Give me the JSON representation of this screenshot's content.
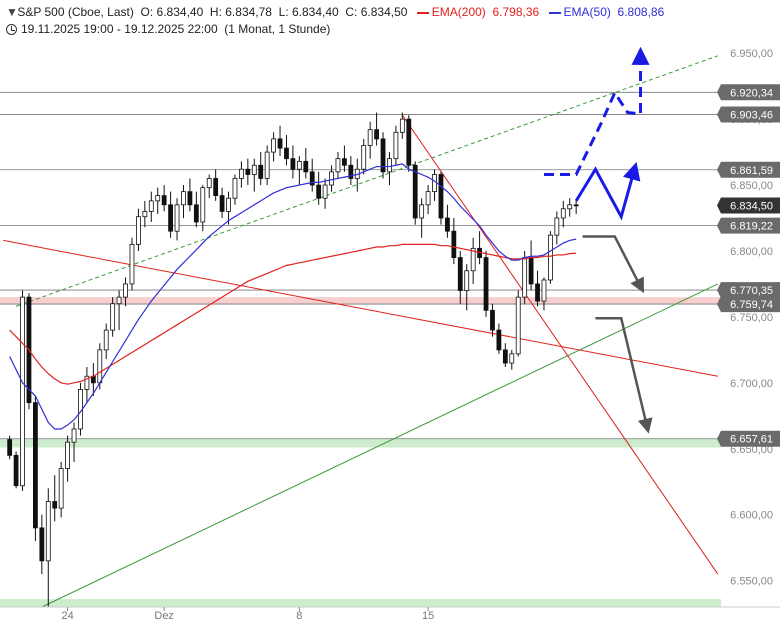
{
  "header": {
    "symbol_line": "S&P 500 (Cboe, Last)",
    "open": "O: 6.834,40",
    "high": "H: 6.834,78",
    "low": "L: 6.834,40",
    "close": "C: 6.834,50",
    "ema200_label": "EMA(200)",
    "ema200_value": "6.798,36",
    "ema50_label": "EMA(50)",
    "ema50_value": "6.808,86",
    "range": "19.11.2025 19:00 - 19.12.2025 22:00",
    "interval": "(1 Monat, 1 Stunde)"
  },
  "colors": {
    "ema200": "#e0211c",
    "ema50": "#2f2fd6",
    "support_zone": "#cdeccd",
    "resistance_zone": "#f7cfcf",
    "forecast_up": "#1a1ae6",
    "forecast_down": "#555555",
    "uptrend": "#3a9a3a",
    "downtrend": "#e0211c",
    "label_bg": "#6a6a6a",
    "current_label_bg": "#333333"
  },
  "chart_data": {
    "type": "candlestick",
    "ylim": [
      6530,
      6960
    ],
    "y_ticks": [
      {
        "value": 6950,
        "label": "6.950,00"
      },
      {
        "value": 6900,
        "label": "6.900,00"
      },
      {
        "value": 6850,
        "label": "6.850,00"
      },
      {
        "value": 6800,
        "label": "6.800,00"
      },
      {
        "value": 6750,
        "label": "6.750,00"
      },
      {
        "value": 6700,
        "label": "6.700,00"
      },
      {
        "value": 6650,
        "label": "6.650,00"
      },
      {
        "value": 6600,
        "label": "6.600,00"
      },
      {
        "value": 6550,
        "label": "6.550,00"
      }
    ],
    "x_ticks": [
      {
        "bar": 10,
        "label": "24"
      },
      {
        "bar": 25,
        "label": "Dez"
      },
      {
        "bar": 46,
        "label": "8"
      },
      {
        "bar": 66,
        "label": "15"
      }
    ],
    "level_labels": [
      {
        "value": 6920.34,
        "label": "6.920,34",
        "line": true
      },
      {
        "value": 6903.46,
        "label": "6.903,46",
        "line": true
      },
      {
        "value": 6861.59,
        "label": "6.861,59",
        "line": true
      },
      {
        "value": 6834.5,
        "label": "6.834,50",
        "line": false,
        "current": true
      },
      {
        "value": 6819.22,
        "label": "6.819,22",
        "line": true
      },
      {
        "value": 6770.35,
        "label": "6.770,35",
        "line": true
      },
      {
        "value": 6759.74,
        "label": "6.759,74",
        "line": true
      },
      {
        "value": 6657.61,
        "label": "6.657,61",
        "line": true
      }
    ],
    "zones": [
      {
        "from": 6759.74,
        "to": 6765,
        "kind": "resistance"
      },
      {
        "from": 6651,
        "to": 6657.61,
        "kind": "support"
      },
      {
        "from": 6530,
        "to": 6536,
        "kind": "support"
      }
    ],
    "trendlines": [
      {
        "kind": "uptrend",
        "style": "solid",
        "from": [
          6,
          6530
        ],
        "to": [
          111,
          6775
        ]
      },
      {
        "kind": "uptrend",
        "style": "dashed",
        "from": [
          2,
          6758
        ],
        "to": [
          111,
          6948
        ]
      },
      {
        "kind": "downtrend",
        "style": "solid",
        "from": [
          0,
          6808
        ],
        "to": [
          111,
          6705
        ]
      },
      {
        "kind": "downtrend",
        "style": "solid",
        "from": [
          62,
          6903
        ],
        "to": [
          111,
          6555
        ]
      }
    ],
    "forecasts": [
      {
        "kind": "up",
        "style": "dashed",
        "points": [
          [
            84,
            6858
          ],
          [
            89,
            6858
          ],
          [
            93,
            6898
          ],
          [
            95,
            6920
          ],
          [
            97,
            6905
          ],
          [
            99,
            6904
          ],
          [
            99,
            6948
          ]
        ]
      },
      {
        "kind": "up",
        "style": "solid",
        "points": [
          [
            89,
            6838
          ],
          [
            92,
            6862
          ],
          [
            96,
            6826
          ],
          [
            98,
            6861
          ]
        ]
      },
      {
        "kind": "down",
        "style": "solid",
        "points": [
          [
            90,
            6811
          ],
          [
            95,
            6811
          ],
          [
            99,
            6773
          ]
        ]
      },
      {
        "kind": "down",
        "style": "solid",
        "points": [
          [
            92,
            6749
          ],
          [
            96,
            6749
          ],
          [
            100,
            6667
          ]
        ]
      }
    ],
    "candles": [
      [
        6657,
        6660,
        6642,
        6645
      ],
      [
        6645,
        6648,
        6620,
        6622
      ],
      [
        6622,
        6770,
        6618,
        6765
      ],
      [
        6765,
        6768,
        6680,
        6685
      ],
      [
        6685,
        6690,
        6580,
        6590
      ],
      [
        6590,
        6600,
        6555,
        6565
      ],
      [
        6565,
        6620,
        6530,
        6610
      ],
      [
        6610,
        6630,
        6595,
        6605
      ],
      [
        6605,
        6640,
        6598,
        6635
      ],
      [
        6635,
        6660,
        6625,
        6655
      ],
      [
        6655,
        6670,
        6640,
        6665
      ],
      [
        6665,
        6700,
        6660,
        6695
      ],
      [
        6695,
        6712,
        6685,
        6705
      ],
      [
        6705,
        6715,
        6690,
        6700
      ],
      [
        6700,
        6730,
        6695,
        6725
      ],
      [
        6725,
        6745,
        6718,
        6740
      ],
      [
        6740,
        6765,
        6735,
        6760
      ],
      [
        6760,
        6770,
        6740,
        6765
      ],
      [
        6765,
        6780,
        6758,
        6775
      ],
      [
        6775,
        6810,
        6770,
        6805
      ],
      [
        6805,
        6832,
        6800,
        6826
      ],
      [
        6826,
        6838,
        6818,
        6830
      ],
      [
        6830,
        6845,
        6822,
        6838
      ],
      [
        6838,
        6848,
        6828,
        6842
      ],
      [
        6842,
        6850,
        6830,
        6835
      ],
      [
        6835,
        6845,
        6810,
        6815
      ],
      [
        6815,
        6840,
        6808,
        6835
      ],
      [
        6835,
        6850,
        6825,
        6845
      ],
      [
        6845,
        6855,
        6830,
        6835
      ],
      [
        6835,
        6845,
        6818,
        6822
      ],
      [
        6822,
        6850,
        6815,
        6848
      ],
      [
        6848,
        6858,
        6840,
        6855
      ],
      [
        6855,
        6862,
        6838,
        6842
      ],
      [
        6842,
        6848,
        6825,
        6830
      ],
      [
        6830,
        6845,
        6820,
        6840
      ],
      [
        6840,
        6858,
        6835,
        6855
      ],
      [
        6855,
        6868,
        6848,
        6862
      ],
      [
        6862,
        6870,
        6850,
        6858
      ],
      [
        6858,
        6870,
        6845,
        6865
      ],
      [
        6865,
        6875,
        6850,
        6855
      ],
      [
        6855,
        6880,
        6850,
        6875
      ],
      [
        6875,
        6890,
        6868,
        6885
      ],
      [
        6885,
        6895,
        6872,
        6878
      ],
      [
        6878,
        6888,
        6865,
        6870
      ],
      [
        6870,
        6880,
        6855,
        6862
      ],
      [
        6862,
        6872,
        6850,
        6868
      ],
      [
        6868,
        6878,
        6855,
        6860
      ],
      [
        6860,
        6870,
        6845,
        6850
      ],
      [
        6850,
        6860,
        6835,
        6840
      ],
      [
        6840,
        6855,
        6832,
        6850
      ],
      [
        6850,
        6865,
        6845,
        6860
      ],
      [
        6860,
        6875,
        6855,
        6870
      ],
      [
        6870,
        6880,
        6860,
        6865
      ],
      [
        6865,
        6872,
        6850,
        6855
      ],
      [
        6855,
        6870,
        6845,
        6862
      ],
      [
        6862,
        6885,
        6858,
        6880
      ],
      [
        6880,
        6898,
        6870,
        6892
      ],
      [
        6892,
        6905,
        6880,
        6885
      ],
      [
        6885,
        6890,
        6855,
        6860
      ],
      [
        6860,
        6875,
        6850,
        6870
      ],
      [
        6870,
        6895,
        6865,
        6890
      ],
      [
        6890,
        6905,
        6885,
        6900
      ],
      [
        6900,
        6903,
        6860,
        6865
      ],
      [
        6865,
        6868,
        6820,
        6825
      ],
      [
        6825,
        6840,
        6810,
        6835
      ],
      [
        6835,
        6850,
        6828,
        6845
      ],
      [
        6845,
        6862,
        6838,
        6858
      ],
      [
        6858,
        6860,
        6820,
        6825
      ],
      [
        6825,
        6835,
        6810,
        6815
      ],
      [
        6815,
        6825,
        6790,
        6795
      ],
      [
        6795,
        6800,
        6760,
        6770
      ],
      [
        6770,
        6790,
        6755,
        6785
      ],
      [
        6785,
        6810,
        6775,
        6802
      ],
      [
        6802,
        6815,
        6790,
        6795
      ],
      [
        6795,
        6800,
        6750,
        6755
      ],
      [
        6755,
        6760,
        6735,
        6740
      ],
      [
        6740,
        6745,
        6722,
        6725
      ],
      [
        6725,
        6730,
        6712,
        6715
      ],
      [
        6715,
        6725,
        6710,
        6722
      ],
      [
        6722,
        6770,
        6720,
        6765
      ],
      [
        6765,
        6800,
        6760,
        6795
      ],
      [
        6795,
        6808,
        6770,
        6775
      ],
      [
        6775,
        6785,
        6758,
        6762
      ],
      [
        6762,
        6780,
        6755,
        6778
      ],
      [
        6778,
        6815,
        6775,
        6812
      ],
      [
        6812,
        6830,
        6805,
        6825
      ],
      [
        6825,
        6838,
        6818,
        6832
      ],
      [
        6832,
        6840,
        6826,
        6835
      ],
      [
        6835,
        6838,
        6828,
        6834.5
      ]
    ],
    "ema50": [
      6720,
      6710,
      6700,
      6695,
      6690,
      6680,
      6670,
      6665,
      6665,
      6668,
      6672,
      6678,
      6685,
      6692,
      6700,
      6708,
      6716,
      6724,
      6732,
      6740,
      6748,
      6755,
      6762,
      6768,
      6774,
      6780,
      6786,
      6791,
      6796,
      6801,
      6806,
      6811,
      6815,
      6819,
      6823,
      6826,
      6829,
      6832,
      6835,
      6838,
      6841,
      6844,
      6846,
      6848,
      6849,
      6850,
      6851,
      6852,
      6852,
      6853,
      6854,
      6855,
      6856,
      6857,
      6858,
      6860,
      6862,
      6864,
      6864,
      6864,
      6865,
      6866,
      6862,
      6860,
      6858,
      6856,
      6853,
      6849,
      6845,
      6840,
      6834,
      6829,
      6824,
      6819,
      6812,
      6806,
      6800,
      6796,
      6793,
      6793,
      6795,
      6796,
      6796,
      6797,
      6800,
      6803,
      6806,
      6808,
      6809
    ],
    "ema200": [
      6740,
      6735,
      6730,
      6725,
      6718,
      6712,
      6707,
      6703,
      6700,
      6699,
      6700,
      6701,
      6703,
      6705,
      6708,
      6711,
      6714,
      6717,
      6720,
      6723,
      6726,
      6729,
      6732,
      6735,
      6738,
      6741,
      6744,
      6747,
      6750,
      6753,
      6756,
      6759,
      6762,
      6765,
      6768,
      6771,
      6774,
      6777,
      6779,
      6781,
      6783,
      6785,
      6787,
      6789,
      6790,
      6791,
      6792,
      6793,
      6794,
      6795,
      6796,
      6797,
      6798,
      6799,
      6800,
      6801,
      6802,
      6803,
      6803,
      6804,
      6804,
      6805,
      6805,
      6805,
      6805,
      6805,
      6805,
      6804,
      6804,
      6803,
      6802,
      6801,
      6800,
      6799,
      6798,
      6797,
      6796,
      6795,
      6794,
      6794,
      6794,
      6795,
      6795,
      6796,
      6796,
      6797,
      6797,
      6798,
      6798.36
    ]
  }
}
